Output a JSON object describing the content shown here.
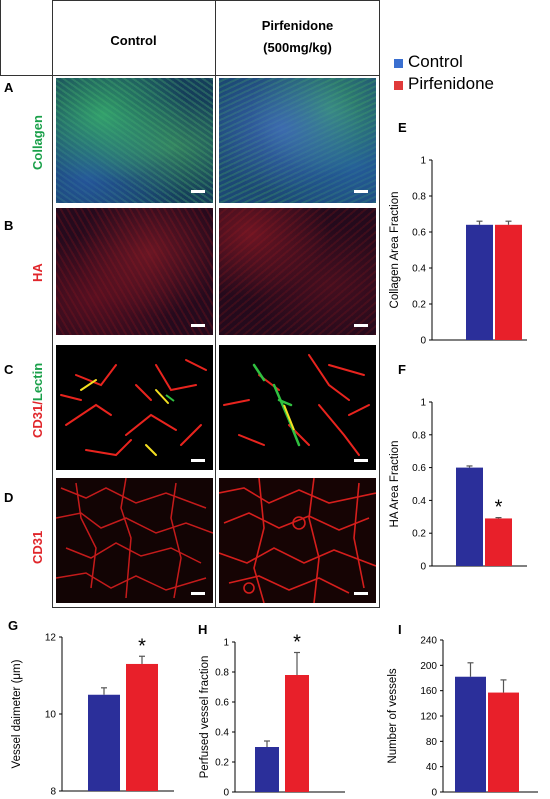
{
  "columns": {
    "control": "Control",
    "pirfenidone_line1": "Pirfenidone",
    "pirfenidone_line2": "(500mg/kg)"
  },
  "rows": [
    {
      "letter": "A",
      "label_parts": [
        {
          "text": "Collagen",
          "color": "#1aa04a"
        }
      ]
    },
    {
      "letter": "B",
      "label_parts": [
        {
          "text": "HA",
          "color": "#e0262b"
        }
      ]
    },
    {
      "letter": "C",
      "label_parts": [
        {
          "text": "CD31",
          "color": "#e0262b"
        },
        {
          "text": "/",
          "color": "#e0262b"
        },
        {
          "text": "Lectin",
          "color": "#1aa04a"
        }
      ]
    },
    {
      "letter": "D",
      "label_parts": [
        {
          "text": "CD31",
          "color": "#e0262b"
        }
      ]
    }
  ],
  "legend": [
    {
      "name": "Control",
      "color": "#3a6fd0"
    },
    {
      "name": "Pirfenidone",
      "color": "#e03a3a"
    }
  ],
  "colors": {
    "control_bar": "#2b2f9a",
    "pirfenidone_bar": "#e8202a"
  },
  "chart_data": [
    {
      "panel": "E",
      "type": "bar",
      "categories": [
        "Control",
        "Pirfenidone"
      ],
      "values": [
        0.64,
        0.64
      ],
      "errors": [
        0.02,
        0.02
      ],
      "ylabel": "Collagen Area Fraction",
      "ylim": [
        0,
        1
      ],
      "yticks": [
        "0",
        "0.2",
        "0.4",
        "0.6",
        "0.8",
        "1"
      ],
      "significance": ""
    },
    {
      "panel": "F",
      "type": "bar",
      "categories": [
        "Control",
        "Pirfenidone"
      ],
      "values": [
        0.6,
        0.29
      ],
      "errors": [
        0.01,
        0.005
      ],
      "ylabel": "HA Area Fraction",
      "ylim": [
        0,
        1
      ],
      "yticks": [
        "0",
        "0.2",
        "0.4",
        "0.6",
        "0.8",
        "1"
      ],
      "significance": "*"
    },
    {
      "panel": "G",
      "type": "bar",
      "categories": [
        "Control",
        "Pirfenidone"
      ],
      "values": [
        10.5,
        11.3
      ],
      "errors": [
        0.18,
        0.2
      ],
      "ylabel": "Vessel daimeter (μm)",
      "ylim": [
        8,
        12
      ],
      "yticks": [
        "8",
        "10",
        "12"
      ],
      "significance": "*"
    },
    {
      "panel": "H",
      "type": "bar",
      "categories": [
        "Control",
        "Pirfenidone"
      ],
      "values": [
        0.3,
        0.78
      ],
      "errors": [
        0.04,
        0.15
      ],
      "ylabel": "Perfused vessel fraction",
      "ylim": [
        0,
        1
      ],
      "yticks": [
        "0",
        "0.2",
        "0.4",
        "0.6",
        "0.8",
        "1"
      ],
      "significance": "*"
    },
    {
      "panel": "I",
      "type": "bar",
      "categories": [
        "Control",
        "Pirfenidone"
      ],
      "values": [
        182,
        157
      ],
      "errors": [
        22,
        20
      ],
      "ylabel": "Number of vessels",
      "ylim": [
        0,
        240
      ],
      "yticks": [
        "0",
        "40",
        "80",
        "120",
        "160",
        "200",
        "240"
      ],
      "significance": ""
    }
  ]
}
